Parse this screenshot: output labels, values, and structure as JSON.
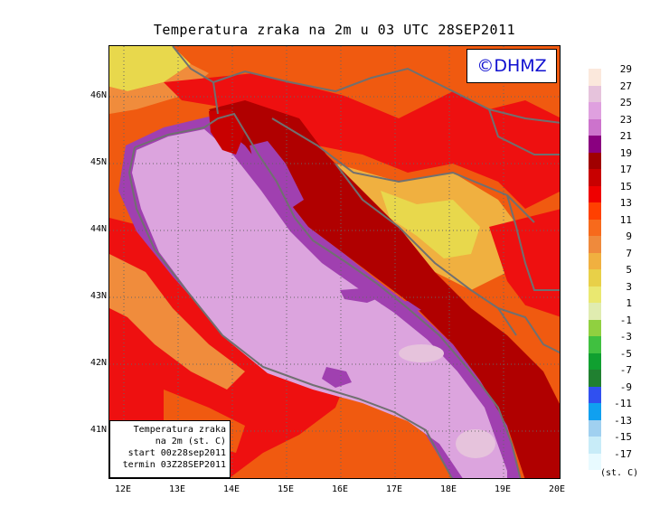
{
  "title": "Temperatura zraka na 2m u 03 UTC 28SEP2011",
  "watermark": "©DHMZ",
  "info_box": {
    "lines": [
      "Temperatura zraka",
      "na 2m (st. C)",
      "start 00z28sep2011",
      "termin 03Z28SEP2011"
    ]
  },
  "axes": {
    "lat_labels": [
      "46N",
      "45N",
      "44N",
      "43N",
      "42N",
      "41N"
    ],
    "lon_labels": [
      "12E",
      "13E",
      "14E",
      "15E",
      "16E",
      "17E",
      "18E",
      "19E",
      "20E"
    ]
  },
  "legend": {
    "unit": "(st. C)",
    "labels": [
      "29",
      "27",
      "25",
      "23",
      "21",
      "19",
      "17",
      "15",
      "13",
      "11",
      "9",
      "7",
      "5",
      "3",
      "1",
      "-1",
      "-3",
      "-5",
      "-7",
      "-9",
      "-11",
      "-13",
      "-15",
      "-17"
    ],
    "colors": [
      "#fbe8dc",
      "#e6c3dc",
      "#dfa0df",
      "#cc73cc",
      "#8a0080",
      "#a00000",
      "#c80000",
      "#ef0000",
      "#ff4000",
      "#f76a1c",
      "#ef8a3c",
      "#f0b040",
      "#e8d048",
      "#eae870",
      "#e0ecb0",
      "#90d040",
      "#40c040",
      "#10a030",
      "#208030",
      "#3050f0",
      "#10a0f0",
      "#a0d0f0",
      "#c8ecf8",
      "#e8faff"
    ]
  },
  "colors": {
    "sea": "#dca4de",
    "sea_light": "#e6c3dc",
    "coast_purple": "#a040b0",
    "dark_red": "#b00000",
    "red": "#ee1010",
    "orange": "#f05a10",
    "light_orange": "#f08c3c",
    "yellow_orange": "#f0b040",
    "yellow": "#e8d84c",
    "border": "#707070"
  }
}
